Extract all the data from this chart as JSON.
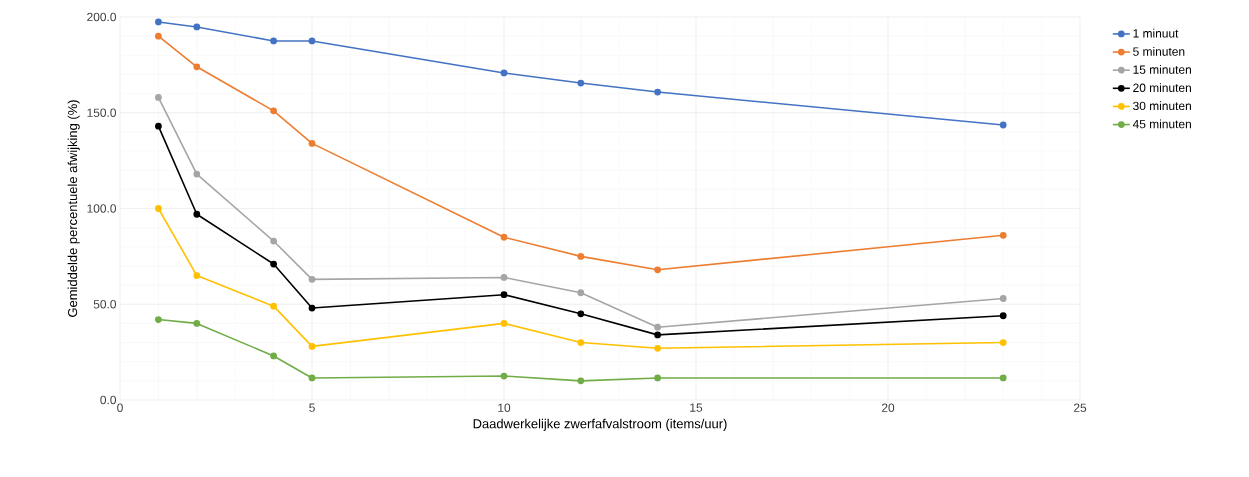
{
  "chart_data": {
    "type": "line",
    "xlabel": "Daadwerkelijke zwerfafvalstroom (items/uur)",
    "ylabel": "Gemiddelde percentuele afwijking (%)",
    "x": [
      1,
      2,
      4,
      5,
      10,
      12,
      14,
      23
    ],
    "xlim": [
      0,
      25
    ],
    "xticks": [
      0,
      5,
      10,
      15,
      20,
      25
    ],
    "ylim": [
      0,
      200
    ],
    "yticks": [
      {
        "value": 0,
        "label": "0.0"
      },
      {
        "value": 50,
        "label": "50.0"
      },
      {
        "value": 100,
        "label": "100.0"
      },
      {
        "value": 150,
        "label": "150.0"
      },
      {
        "value": 200,
        "label": "200.0"
      }
    ],
    "grid": true,
    "legend": "right",
    "marker": "circle",
    "line_style": "solid",
    "series": [
      {
        "name": "1 minuut",
        "color": "#4472c4",
        "values": [
          197.4,
          194.8,
          187.5,
          187.5,
          170.8,
          165.5,
          160.8,
          143.6
        ]
      },
      {
        "name": "5 minuten",
        "color": "#ed7d31",
        "values": [
          190,
          174,
          151,
          134,
          85,
          75,
          68,
          86
        ]
      },
      {
        "name": "15 minuten",
        "color": "#a5a5a5",
        "values": [
          158,
          118,
          83,
          63,
          64,
          56,
          38,
          53
        ]
      },
      {
        "name": "20 minuten",
        "color": "#000000",
        "values": [
          143,
          97,
          71,
          48,
          55,
          45,
          34,
          44
        ]
      },
      {
        "name": "30 minuten",
        "color": "#ffc000",
        "values": [
          100,
          65,
          49,
          28,
          40,
          30,
          27,
          30
        ]
      },
      {
        "name": "45 minuten",
        "color": "#70ad47",
        "values": [
          42,
          40,
          23,
          11.5,
          12.5,
          10,
          11.5,
          11.5
        ]
      }
    ]
  }
}
